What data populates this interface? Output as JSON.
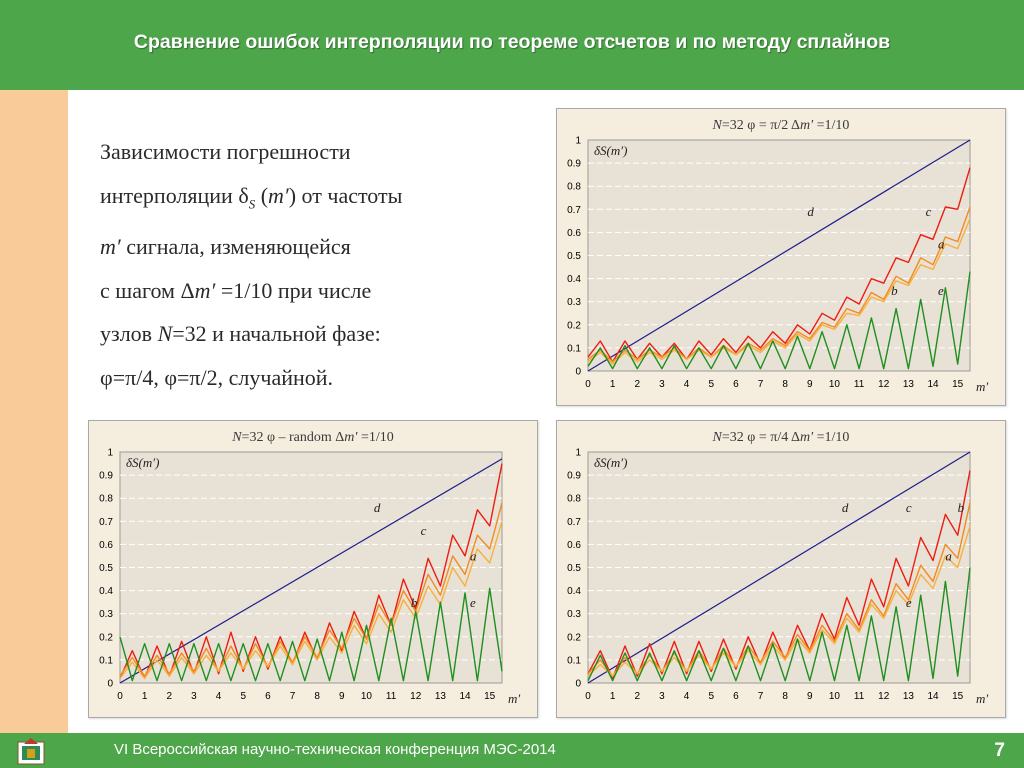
{
  "header": {
    "title": "Сравнение ошибок интерполяции по теореме отсчетов и по методу сплайнов"
  },
  "description": {
    "l1": "Зависимости погрешности",
    "l2a": "интерполяции ",
    "delta": "δ",
    "l2sub": "S",
    "l2b": " (",
    "mprime": "m′",
    "l2c": ") от частоты",
    "l3b": " сигнала, изменяющейся",
    "l4a": "с шагом ",
    "l4delta": "Δ",
    "l4b": " =1/10 при числе",
    "l5a": "узлов ",
    "N": "N",
    "l5b": "=32 и начальной фазе:",
    "l6": "φ=π/4, φ=π/2, случайной."
  },
  "footer": {
    "text": "VI Всероссийская научно-техническая конференция МЭС-2014",
    "page": "7"
  },
  "colors": {
    "d": "#1c1c8c",
    "c": "#ee1c10",
    "b": "#f38a1e",
    "a": "#f7b040",
    "e": "#1f8f1f",
    "plot_bg": "#e8e1d5",
    "frame_bg": "#f5eedf",
    "header": "#4ea64a",
    "left_bar": "#f8cb98"
  },
  "chart_data": [
    {
      "id": "top",
      "type": "line",
      "title_parts": [
        "N",
        "=32     φ = π/2     Δ",
        "m′",
        " =1/10"
      ],
      "ylabel": "δS(m′)",
      "xlabel": "m′",
      "xlim": [
        0,
        15.5
      ],
      "ylim": [
        0,
        1
      ],
      "x_ticks": [
        "0",
        "1",
        "2",
        "3",
        "4",
        "5",
        "6",
        "7",
        "8",
        "9",
        "10",
        "11",
        "12",
        "13",
        "14",
        "15"
      ],
      "y_ticks": [
        "0",
        "0.1",
        "0.2",
        "0.3",
        "0.4",
        "0.5",
        "0.6",
        "0.7",
        "0.8",
        "0.9",
        "1"
      ],
      "series": [
        {
          "name": "d",
          "x": [
            0,
            15.5
          ],
          "y": [
            0,
            1.0
          ]
        },
        {
          "name": "c",
          "x": [
            0,
            0.5,
            1,
            1.5,
            2,
            2.5,
            3,
            3.5,
            4,
            4.5,
            5,
            5.5,
            6,
            6.5,
            7,
            7.5,
            8,
            8.5,
            9,
            9.5,
            10,
            10.5,
            11,
            11.5,
            12,
            12.5,
            13,
            13.5,
            14,
            14.5,
            15,
            15.5
          ],
          "y": [
            0.06,
            0.13,
            0.04,
            0.13,
            0.05,
            0.12,
            0.06,
            0.12,
            0.05,
            0.13,
            0.07,
            0.14,
            0.08,
            0.15,
            0.1,
            0.17,
            0.12,
            0.2,
            0.16,
            0.25,
            0.22,
            0.32,
            0.29,
            0.4,
            0.38,
            0.49,
            0.47,
            0.59,
            0.57,
            0.71,
            0.7,
            0.88
          ]
        },
        {
          "name": "b",
          "x": [
            0,
            0.5,
            1,
            1.5,
            2,
            2.5,
            3,
            3.5,
            4,
            4.5,
            5,
            5.5,
            6,
            6.5,
            7,
            7.5,
            8,
            8.5,
            9,
            9.5,
            10,
            10.5,
            11,
            11.5,
            12,
            12.5,
            13,
            13.5,
            14,
            14.5,
            15,
            15.5
          ],
          "y": [
            0.05,
            0.09,
            0.04,
            0.09,
            0.05,
            0.09,
            0.06,
            0.1,
            0.05,
            0.1,
            0.06,
            0.11,
            0.07,
            0.12,
            0.09,
            0.14,
            0.11,
            0.17,
            0.14,
            0.21,
            0.19,
            0.27,
            0.25,
            0.34,
            0.31,
            0.41,
            0.38,
            0.49,
            0.46,
            0.58,
            0.56,
            0.71
          ]
        },
        {
          "name": "a",
          "x": [
            0,
            0.5,
            1,
            1.5,
            2,
            2.5,
            3,
            3.5,
            4,
            4.5,
            5,
            5.5,
            6,
            6.5,
            7,
            7.5,
            8,
            8.5,
            9,
            9.5,
            10,
            10.5,
            11,
            11.5,
            12,
            12.5,
            13,
            13.5,
            14,
            14.5,
            15,
            15.5
          ],
          "y": [
            0.04,
            0.08,
            0.03,
            0.08,
            0.04,
            0.08,
            0.05,
            0.09,
            0.05,
            0.09,
            0.06,
            0.1,
            0.07,
            0.11,
            0.08,
            0.13,
            0.1,
            0.16,
            0.13,
            0.2,
            0.18,
            0.25,
            0.24,
            0.32,
            0.3,
            0.39,
            0.37,
            0.46,
            0.44,
            0.55,
            0.53,
            0.66
          ]
        },
        {
          "name": "e",
          "x": [
            0,
            0.5,
            1,
            1.5,
            2,
            2.5,
            3,
            3.5,
            4,
            4.5,
            5,
            5.5,
            6,
            6.5,
            7,
            7.5,
            8,
            8.5,
            9,
            9.5,
            10,
            10.5,
            11,
            11.5,
            12,
            12.5,
            13,
            13.5,
            14,
            14.5,
            15,
            15.5
          ],
          "y": [
            0.02,
            0.1,
            0.01,
            0.11,
            0.01,
            0.1,
            0.01,
            0.11,
            0.01,
            0.1,
            0.01,
            0.11,
            0.01,
            0.12,
            0.01,
            0.13,
            0.01,
            0.15,
            0.01,
            0.17,
            0.01,
            0.2,
            0.01,
            0.23,
            0.01,
            0.27,
            0.01,
            0.31,
            0.02,
            0.36,
            0.03,
            0.43
          ]
        }
      ],
      "curve_labels": [
        {
          "text": "d",
          "x": 8.9,
          "y": 0.67
        },
        {
          "text": "c",
          "x": 13.7,
          "y": 0.67
        },
        {
          "text": "a",
          "x": 14.2,
          "y": 0.53
        },
        {
          "text": "b",
          "x": 12.3,
          "y": 0.33
        },
        {
          "text": "e",
          "x": 14.2,
          "y": 0.33
        }
      ]
    },
    {
      "id": "bl",
      "type": "line",
      "title_parts": [
        "N",
        "=32     φ – random     Δ",
        "m′",
        " =1/10"
      ],
      "ylabel": "δS(m′)",
      "xlabel": "m′",
      "xlim": [
        0,
        15.5
      ],
      "ylim": [
        0,
        1
      ],
      "x_ticks": [
        "0",
        "1",
        "2",
        "3",
        "4",
        "5",
        "6",
        "7",
        "8",
        "9",
        "10",
        "11",
        "12",
        "13",
        "14",
        "15"
      ],
      "y_ticks": [
        "0",
        "0.1",
        "0.2",
        "0.3",
        "0.4",
        "0.5",
        "0.6",
        "0.7",
        "0.8",
        "0.9",
        "1"
      ],
      "series": [
        {
          "name": "d",
          "x": [
            0,
            15.5
          ],
          "y": [
            0,
            0.97
          ]
        },
        {
          "name": "c",
          "x": [
            0,
            0.5,
            1,
            1.5,
            2,
            2.5,
            3,
            3.5,
            4,
            4.5,
            5,
            5.5,
            6,
            6.5,
            7,
            7.5,
            8,
            8.5,
            9,
            9.5,
            10,
            10.5,
            11,
            11.5,
            12,
            12.5,
            13,
            13.5,
            14,
            14.5,
            15,
            15.5
          ],
          "y": [
            0.02,
            0.14,
            0.02,
            0.16,
            0.03,
            0.18,
            0.04,
            0.2,
            0.04,
            0.22,
            0.05,
            0.2,
            0.06,
            0.2,
            0.08,
            0.22,
            0.1,
            0.26,
            0.14,
            0.31,
            0.19,
            0.38,
            0.25,
            0.45,
            0.32,
            0.54,
            0.42,
            0.64,
            0.55,
            0.75,
            0.68,
            0.95
          ]
        },
        {
          "name": "b",
          "x": [
            0,
            0.5,
            1,
            1.5,
            2,
            2.5,
            3,
            3.5,
            4,
            4.5,
            5,
            5.5,
            6,
            6.5,
            7,
            7.5,
            8,
            8.5,
            9,
            9.5,
            10,
            10.5,
            11,
            11.5,
            12,
            12.5,
            13,
            13.5,
            14,
            14.5,
            15,
            15.5
          ],
          "y": [
            0.03,
            0.11,
            0.03,
            0.12,
            0.04,
            0.13,
            0.05,
            0.15,
            0.05,
            0.16,
            0.06,
            0.17,
            0.07,
            0.18,
            0.09,
            0.2,
            0.11,
            0.23,
            0.15,
            0.28,
            0.19,
            0.34,
            0.25,
            0.4,
            0.31,
            0.47,
            0.38,
            0.55,
            0.47,
            0.64,
            0.58,
            0.78
          ]
        },
        {
          "name": "a",
          "x": [
            0,
            0.5,
            1,
            1.5,
            2,
            2.5,
            3,
            3.5,
            4,
            4.5,
            5,
            5.5,
            6,
            6.5,
            7,
            7.5,
            8,
            8.5,
            9,
            9.5,
            10,
            10.5,
            11,
            11.5,
            12,
            12.5,
            13,
            13.5,
            14,
            14.5,
            15,
            15.5
          ],
          "y": [
            0.02,
            0.09,
            0.02,
            0.1,
            0.03,
            0.11,
            0.04,
            0.12,
            0.05,
            0.13,
            0.06,
            0.14,
            0.07,
            0.16,
            0.08,
            0.18,
            0.1,
            0.2,
            0.13,
            0.25,
            0.17,
            0.3,
            0.22,
            0.36,
            0.28,
            0.42,
            0.34,
            0.5,
            0.42,
            0.58,
            0.52,
            0.7
          ]
        },
        {
          "name": "e",
          "x": [
            0,
            0.5,
            1,
            1.5,
            2,
            2.5,
            3,
            3.5,
            4,
            4.5,
            5,
            5.5,
            6,
            6.5,
            7,
            7.5,
            8,
            8.5,
            9,
            9.5,
            10,
            10.5,
            11,
            11.5,
            12,
            12.5,
            13,
            13.5,
            14,
            14.5,
            15,
            15.5
          ],
          "y": [
            0.2,
            0.01,
            0.17,
            0.01,
            0.17,
            0.01,
            0.17,
            0.01,
            0.17,
            0.01,
            0.17,
            0.01,
            0.17,
            0.01,
            0.18,
            0.01,
            0.19,
            0.01,
            0.22,
            0.01,
            0.25,
            0.01,
            0.28,
            0.01,
            0.31,
            0.01,
            0.35,
            0.01,
            0.39,
            0.01,
            0.41,
            0.05
          ]
        }
      ],
      "curve_labels": [
        {
          "text": "d",
          "x": 10.3,
          "y": 0.74
        },
        {
          "text": "c",
          "x": 12.2,
          "y": 0.64
        },
        {
          "text": "a",
          "x": 14.2,
          "y": 0.53
        },
        {
          "text": "b",
          "x": 11.8,
          "y": 0.33
        },
        {
          "text": "e",
          "x": 14.2,
          "y": 0.33
        }
      ]
    },
    {
      "id": "br",
      "type": "line",
      "title_parts": [
        "N",
        "=32     φ = π/4     Δ",
        "m′",
        " =1/10"
      ],
      "ylabel": "δS(m′)",
      "xlabel": "m′",
      "xlim": [
        0,
        15.5
      ],
      "ylim": [
        0,
        1
      ],
      "x_ticks": [
        "0",
        "1",
        "2",
        "3",
        "4",
        "5",
        "6",
        "7",
        "8",
        "9",
        "10",
        "11",
        "12",
        "13",
        "14",
        "15"
      ],
      "y_ticks": [
        "0",
        "0.1",
        "0.2",
        "0.3",
        "0.4",
        "0.5",
        "0.6",
        "0.7",
        "0.8",
        "0.9",
        "1"
      ],
      "series": [
        {
          "name": "d",
          "x": [
            0,
            15.5
          ],
          "y": [
            0,
            1.0
          ]
        },
        {
          "name": "c",
          "x": [
            0,
            0.5,
            1,
            1.5,
            2,
            2.5,
            3,
            3.5,
            4,
            4.5,
            5,
            5.5,
            6,
            6.5,
            7,
            7.5,
            8,
            8.5,
            9,
            9.5,
            10,
            10.5,
            11,
            11.5,
            12,
            12.5,
            13,
            13.5,
            14,
            14.5,
            15,
            15.5
          ],
          "y": [
            0.04,
            0.14,
            0.02,
            0.16,
            0.03,
            0.17,
            0.04,
            0.18,
            0.04,
            0.18,
            0.05,
            0.19,
            0.06,
            0.2,
            0.08,
            0.22,
            0.1,
            0.25,
            0.14,
            0.3,
            0.19,
            0.37,
            0.25,
            0.45,
            0.33,
            0.54,
            0.42,
            0.63,
            0.53,
            0.73,
            0.64,
            0.92
          ]
        },
        {
          "name": "b",
          "x": [
            0,
            0.5,
            1,
            1.5,
            2,
            2.5,
            3,
            3.5,
            4,
            4.5,
            5,
            5.5,
            6,
            6.5,
            7,
            7.5,
            8,
            8.5,
            9,
            9.5,
            10,
            10.5,
            11,
            11.5,
            12,
            12.5,
            13,
            13.5,
            14,
            14.5,
            15,
            15.5
          ],
          "y": [
            0.04,
            0.1,
            0.03,
            0.11,
            0.04,
            0.12,
            0.05,
            0.13,
            0.05,
            0.14,
            0.06,
            0.15,
            0.07,
            0.16,
            0.09,
            0.18,
            0.11,
            0.21,
            0.14,
            0.25,
            0.18,
            0.3,
            0.23,
            0.36,
            0.29,
            0.43,
            0.36,
            0.51,
            0.44,
            0.6,
            0.54,
            0.78
          ]
        },
        {
          "name": "a",
          "x": [
            0,
            0.5,
            1,
            1.5,
            2,
            2.5,
            3,
            3.5,
            4,
            4.5,
            5,
            5.5,
            6,
            6.5,
            7,
            7.5,
            8,
            8.5,
            9,
            9.5,
            10,
            10.5,
            11,
            11.5,
            12,
            12.5,
            13,
            13.5,
            14,
            14.5,
            15,
            15.5
          ],
          "y": [
            0.03,
            0.08,
            0.03,
            0.09,
            0.04,
            0.1,
            0.05,
            0.11,
            0.05,
            0.12,
            0.06,
            0.13,
            0.07,
            0.14,
            0.08,
            0.16,
            0.1,
            0.19,
            0.13,
            0.23,
            0.17,
            0.28,
            0.22,
            0.34,
            0.28,
            0.4,
            0.34,
            0.47,
            0.41,
            0.55,
            0.5,
            0.68
          ]
        },
        {
          "name": "e",
          "x": [
            0,
            0.5,
            1,
            1.5,
            2,
            2.5,
            3,
            3.5,
            4,
            4.5,
            5,
            5.5,
            6,
            6.5,
            7,
            7.5,
            8,
            8.5,
            9,
            9.5,
            10,
            10.5,
            11,
            11.5,
            12,
            12.5,
            13,
            13.5,
            14,
            14.5,
            15,
            15.5
          ],
          "y": [
            0.01,
            0.12,
            0.01,
            0.13,
            0.01,
            0.13,
            0.01,
            0.14,
            0.01,
            0.14,
            0.01,
            0.15,
            0.01,
            0.16,
            0.01,
            0.17,
            0.01,
            0.19,
            0.01,
            0.22,
            0.01,
            0.25,
            0.01,
            0.29,
            0.01,
            0.33,
            0.01,
            0.38,
            0.02,
            0.44,
            0.03,
            0.5
          ]
        }
      ],
      "curve_labels": [
        {
          "text": "d",
          "x": 10.3,
          "y": 0.74
        },
        {
          "text": "c",
          "x": 12.9,
          "y": 0.74
        },
        {
          "text": "b",
          "x": 15.0,
          "y": 0.74
        },
        {
          "text": "a",
          "x": 14.5,
          "y": 0.53
        },
        {
          "text": "e",
          "x": 12.9,
          "y": 0.33
        }
      ]
    }
  ]
}
